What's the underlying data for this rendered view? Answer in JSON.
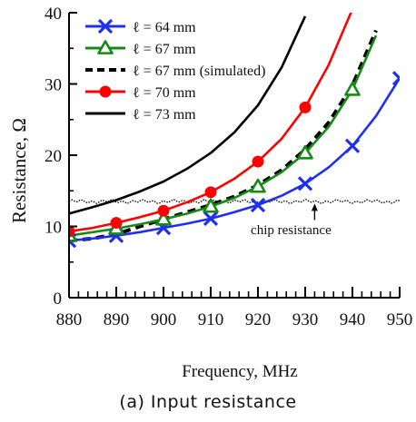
{
  "chart_data": {
    "type": "line",
    "xlabel": "Frequency, MHz",
    "ylabel": "Resistance, Ω",
    "xlim": [
      880,
      950
    ],
    "ylim": [
      0,
      40
    ],
    "xticks": [
      "880",
      "890",
      "900",
      "910",
      "920",
      "930",
      "940",
      "950"
    ],
    "yticks": [
      "0",
      "10",
      "20",
      "30",
      "40"
    ],
    "legend_position": "top-left",
    "series": [
      {
        "name": "ℓ = 64 mm",
        "color": "#1f2ff0",
        "line": "solid",
        "marker": "x",
        "x": [
          880,
          885,
          890,
          895,
          900,
          905,
          910,
          915,
          920,
          925,
          930,
          935,
          940,
          945,
          950
        ],
        "y": [
          8.0,
          8.3,
          8.7,
          9.2,
          9.8,
          10.4,
          11.1,
          12.0,
          13.0,
          14.3,
          16.0,
          18.3,
          21.3,
          25.5,
          30.8
        ],
        "marker_x": [
          880,
          890,
          900,
          910,
          920,
          930,
          940,
          950
        ]
      },
      {
        "name": "ℓ = 67 mm",
        "color": "#168a16",
        "line": "solid",
        "marker": "triangle",
        "x": [
          880,
          885,
          890,
          895,
          900,
          905,
          910,
          915,
          920,
          925,
          930,
          935,
          940,
          945
        ],
        "y": [
          8.7,
          9.2,
          9.7,
          10.3,
          11.0,
          11.8,
          12.8,
          14.0,
          15.6,
          17.6,
          20.3,
          24.0,
          29.2,
          36.8
        ],
        "marker_x": [
          880,
          890,
          900,
          910,
          920,
          930,
          940
        ]
      },
      {
        "name": "ℓ = 67 mm (simulated)",
        "color": "#000000",
        "line": "dash",
        "marker": "none",
        "x": [
          880,
          885,
          890,
          895,
          900,
          905,
          910,
          915,
          920,
          925,
          930,
          935,
          940,
          945
        ],
        "y": [
          8.0,
          8.3,
          8.9,
          10.0,
          11.0,
          12.0,
          13.0,
          14.2,
          15.8,
          17.9,
          20.8,
          24.6,
          29.8,
          37.5
        ],
        "marker_x": []
      },
      {
        "name": "ℓ = 70 mm",
        "color": "#ff0000",
        "line": "solid",
        "marker": "circle",
        "x": [
          880,
          885,
          890,
          895,
          900,
          905,
          910,
          915,
          920,
          925,
          930,
          935,
          940
        ],
        "y": [
          9.3,
          9.8,
          10.5,
          11.3,
          12.2,
          13.4,
          14.8,
          16.7,
          19.1,
          22.3,
          26.7,
          32.7,
          40.5
        ],
        "marker_x": [
          880,
          890,
          900,
          910,
          920,
          930
        ]
      },
      {
        "name": "ℓ = 73 mm",
        "color": "#000000",
        "line": "solid",
        "marker": "none",
        "x": [
          880,
          885,
          890,
          895,
          900,
          905,
          910,
          915,
          920,
          925,
          930
        ],
        "y": [
          11.8,
          12.7,
          13.7,
          14.9,
          16.3,
          18.1,
          20.3,
          23.2,
          27.0,
          32.3,
          39.5
        ],
        "marker_x": []
      }
    ],
    "reference": {
      "label": "chip resistance",
      "value": 13.5,
      "color": "#000000",
      "line": "dotted"
    }
  },
  "caption": "(a) Input resistance"
}
